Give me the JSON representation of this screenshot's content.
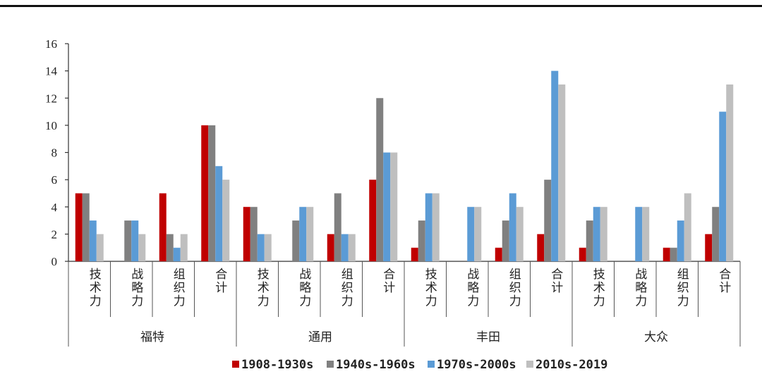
{
  "chart_data": {
    "type": "bar",
    "ylim": [
      0,
      16
    ],
    "yticks": [
      0,
      2,
      4,
      6,
      8,
      10,
      12,
      14,
      16
    ],
    "grid": false,
    "legend_position": "bottom",
    "groups": [
      {
        "name": "福特",
        "categories": [
          "技术力",
          "战略力",
          "组织力",
          "合计"
        ]
      },
      {
        "name": "通用",
        "categories": [
          "技术力",
          "战略力",
          "组织力",
          "合计"
        ]
      },
      {
        "name": "丰田",
        "categories": [
          "技术力",
          "战略力",
          "组织力",
          "合计"
        ]
      },
      {
        "name": "大众",
        "categories": [
          "技术力",
          "战略力",
          "组织力",
          "合计"
        ]
      }
    ],
    "series": [
      {
        "name": "1908-1930s",
        "color": "#c00000",
        "values": [
          5,
          0,
          5,
          10,
          4,
          0,
          2,
          6,
          1,
          0,
          1,
          2,
          1,
          0,
          1,
          2
        ]
      },
      {
        "name": "1940s-1960s",
        "color": "#808080",
        "values": [
          5,
          3,
          2,
          10,
          4,
          3,
          5,
          12,
          3,
          0,
          3,
          6,
          3,
          0,
          1,
          4
        ]
      },
      {
        "name": "1970s-2000s",
        "color": "#5b9bd5",
        "values": [
          3,
          3,
          1,
          7,
          2,
          4,
          2,
          8,
          5,
          4,
          5,
          14,
          4,
          4,
          3,
          11
        ]
      },
      {
        "name": "2010s-2019",
        "color": "#bfbfbf",
        "values": [
          2,
          2,
          2,
          6,
          2,
          4,
          2,
          8,
          5,
          4,
          4,
          13,
          4,
          4,
          5,
          13
        ]
      }
    ]
  }
}
